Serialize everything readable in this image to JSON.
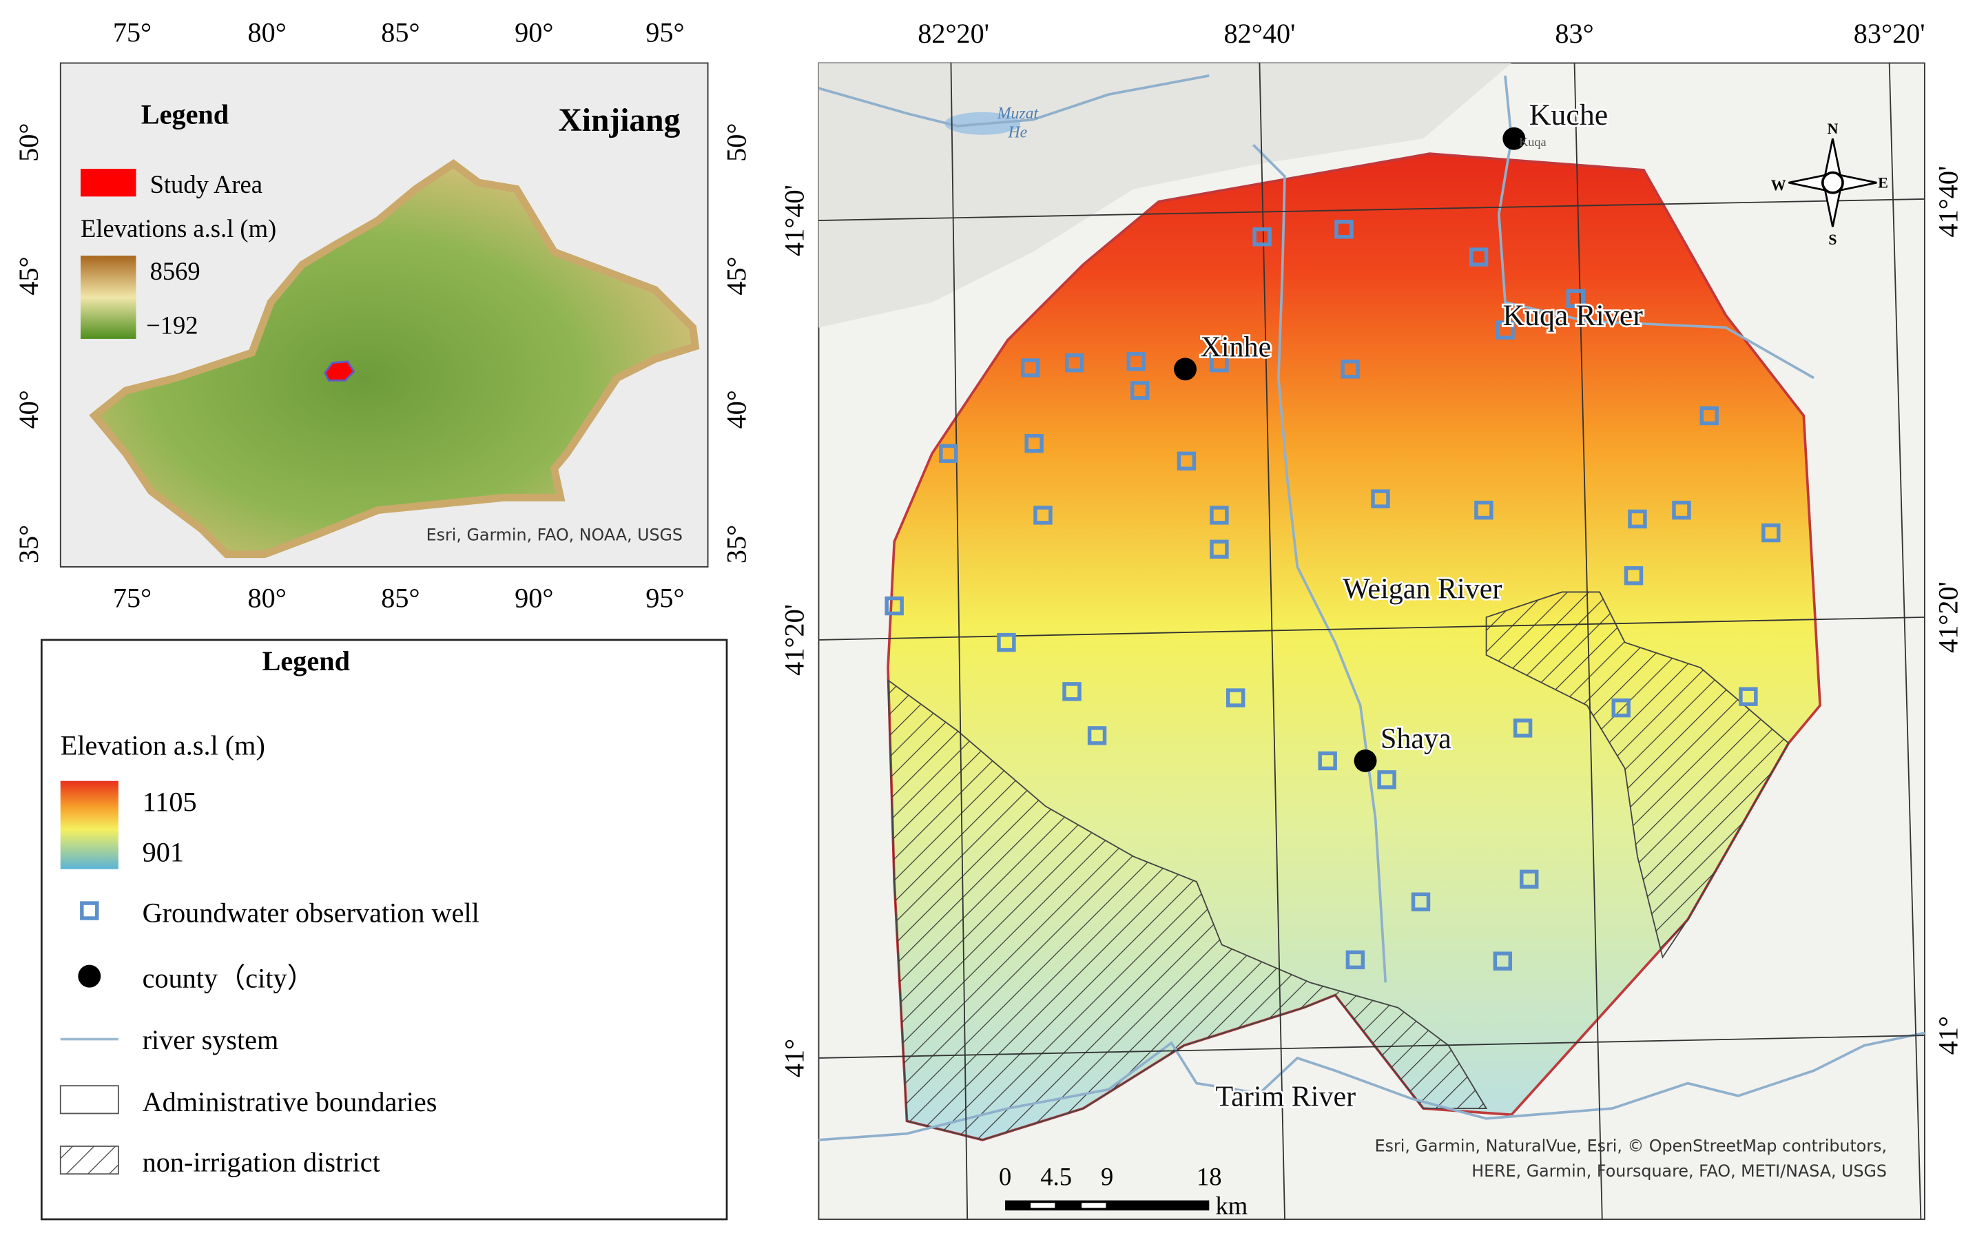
{
  "inset": {
    "legend_title": "Legend",
    "region": "Xinjiang",
    "study_area": "Study Area",
    "elevation_title": "Elevations a.s.l (m)",
    "elevation_max": 8569,
    "elevation_min": "−192",
    "attribution": "Esri, Garmin, FAO, NOAA, USGS",
    "lon_labels": [
      "75°",
      "80°",
      "85°",
      "90°",
      "95°"
    ],
    "lat_labels": [
      "50°",
      "45°",
      "40°",
      "35°"
    ]
  },
  "legend": {
    "title": "Legend",
    "elevation_title": "Elevation a.s.l (m)",
    "elevation_max": 1105,
    "elevation_min": 901,
    "items": [
      "Groundwater observation well",
      "county（city）",
      "river system",
      "Administrative boundaries",
      "non-irrigation district"
    ]
  },
  "map": {
    "lon_labels": [
      "82°20'",
      "82°40'",
      "83°",
      "83°20'"
    ],
    "lat_labels": [
      "41°40'",
      "41°20'",
      "41°"
    ],
    "places": [
      "Muzat",
      "He",
      "Kuche",
      "Kuqa",
      "Xinhe",
      "Kuqa River",
      "Weigan River",
      "Shaya",
      "Tarim River"
    ],
    "compass": [
      "N",
      "S",
      "W",
      "E"
    ],
    "attribution": [
      "Esri, Garmin, NaturalVue, Esri, © OpenStreetMap contributors,",
      "HERE, Garmin, Foursquare, FAO, METI/NASA, USGS"
    ],
    "scale": {
      "ticks": [
        0,
        4.5,
        9,
        18
      ],
      "unit": "km"
    }
  }
}
